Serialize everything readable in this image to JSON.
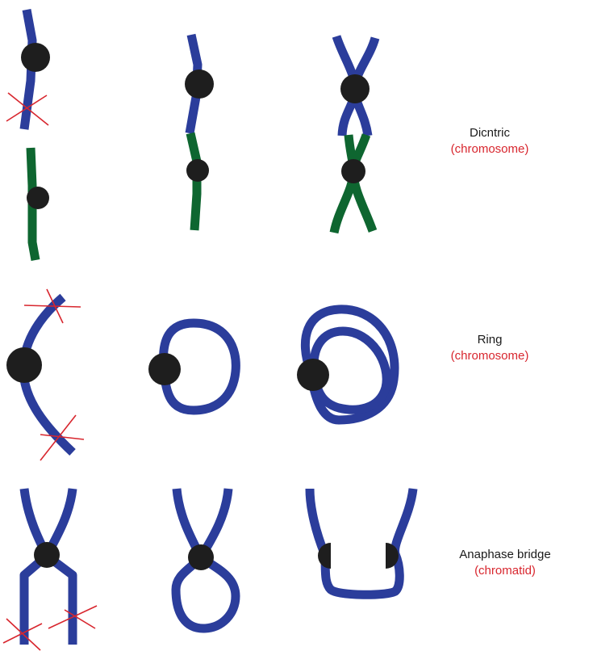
{
  "colors": {
    "chromosome_blue": "#2b3d9b",
    "chromosome_green": "#0e6630",
    "centromere": "#1e1e1e",
    "break_mark": "#d8262e",
    "label_text": "#1a1a1a",
    "label_subtext": "#d8262e"
  },
  "rows": [
    {
      "name": "Dicntric",
      "subtitle": "(chromosome)"
    },
    {
      "name": "Ring",
      "subtitle": "(chromosome)"
    },
    {
      "name": "Anaphase bridge",
      "subtitle": "(chromatid)"
    }
  ]
}
